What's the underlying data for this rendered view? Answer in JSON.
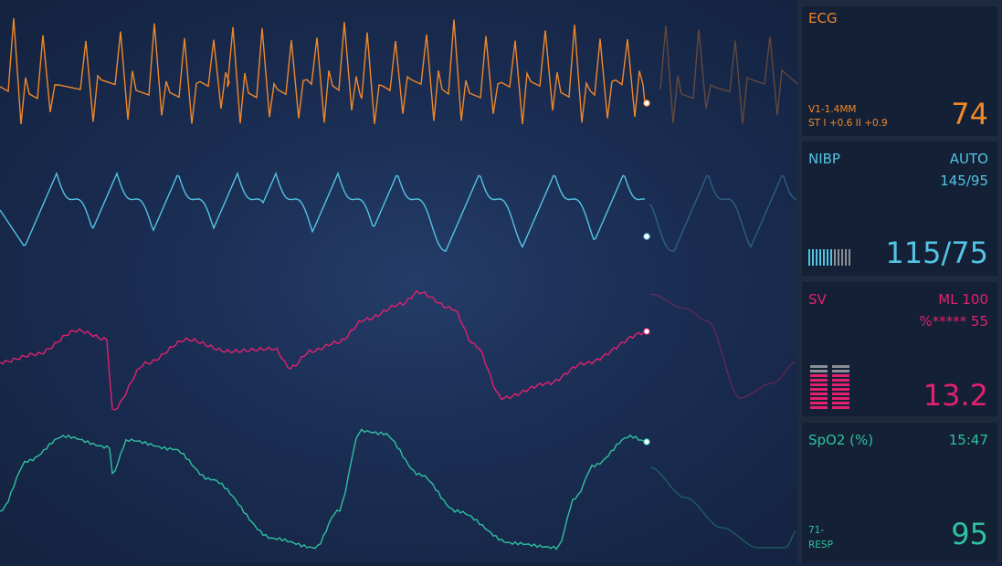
{
  "ecg": {
    "label": "ECG",
    "lead": "V1-1.4MM",
    "st": "ST I +0.6 II +0.9",
    "value": "74",
    "color": "#f0882a"
  },
  "nibp": {
    "label": "NIBP",
    "mode": "AUTO",
    "last": "145/95",
    "value": "115/75",
    "color": "#52c4e4",
    "bar_level": 0.55
  },
  "sv": {
    "label": "SV",
    "scale": "ML 100",
    "pct": "%***** 55",
    "value": "13.2",
    "color": "#e2216f",
    "bar_level": 0.82
  },
  "spo2": {
    "label": "SpO2 (%)",
    "time": "15:47",
    "resp_value": "71-",
    "resp_label": "RESP",
    "value": "95",
    "color": "#2fc1a0"
  }
}
